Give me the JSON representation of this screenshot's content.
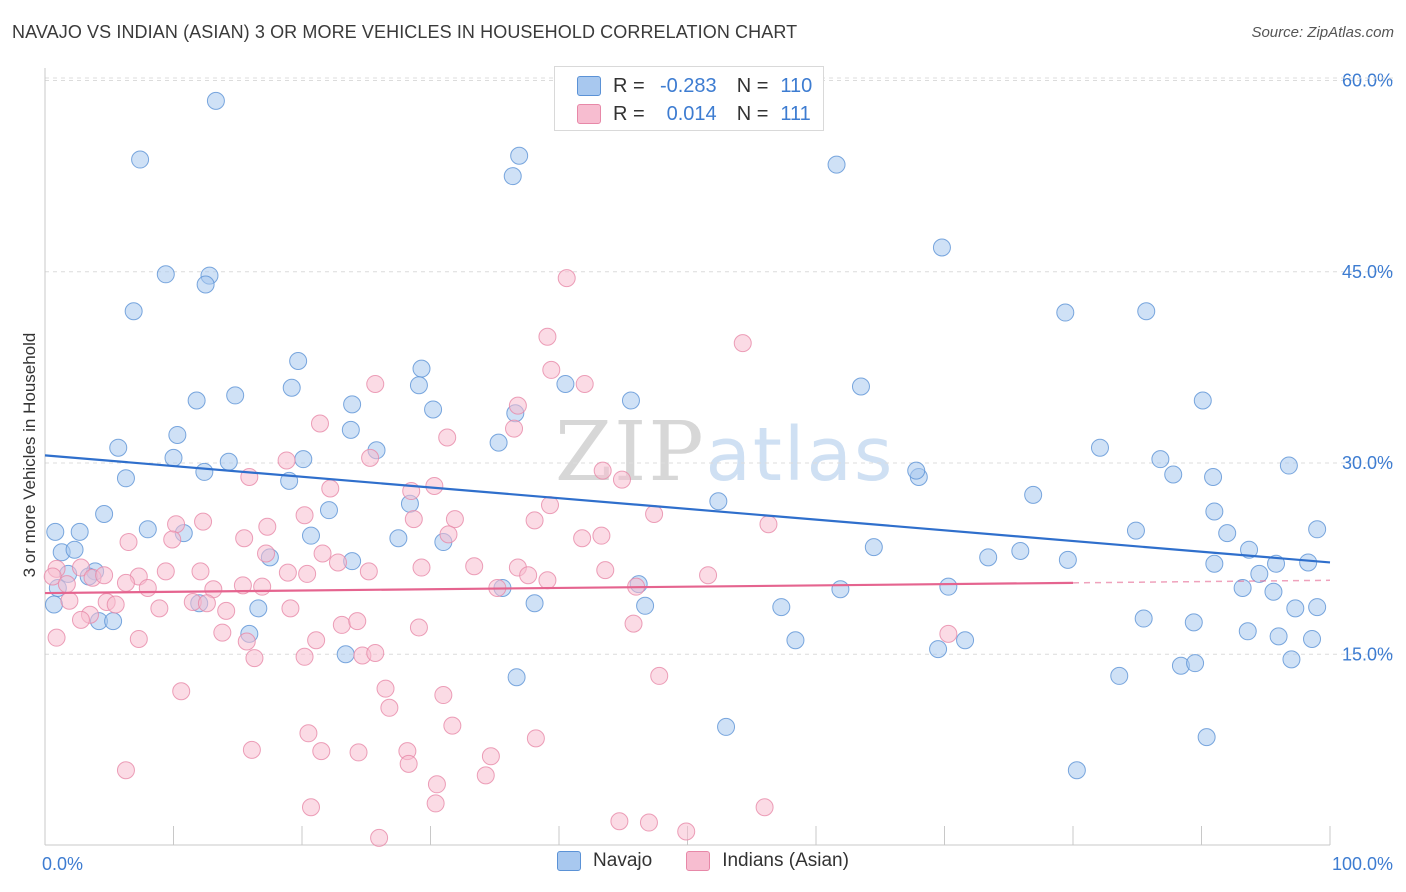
{
  "title": "NAVAJO VS INDIAN (ASIAN) 3 OR MORE VEHICLES IN HOUSEHOLD CORRELATION CHART",
  "source": "Source: ZipAtlas.com",
  "watermark": {
    "part1": "ZIP",
    "part2": "atlas"
  },
  "legend_stats": {
    "r_label": "R =",
    "n_label": "N =",
    "navajo": {
      "r": "-0.283",
      "n": "110"
    },
    "indian": {
      "r": "0.014",
      "n": "111"
    }
  },
  "colors": {
    "navajo_fill": "#a8c8ef",
    "navajo_stroke": "#5b92d6",
    "navajo_line": "#2f6fcc",
    "indian_fill": "#f7bdd0",
    "indian_stroke": "#e788a8",
    "indian_line": "#e5648f",
    "grid": "#dcdcdc",
    "tick_text": "#3d7cd1"
  },
  "chart_data": {
    "type": "scatter",
    "title": "NAVAJO VS INDIAN (ASIAN) 3 OR MORE VEHICLES IN HOUSEHOLD CORRELATION CHART",
    "xlabel": "",
    "ylabel": "3 or more Vehicles in Household",
    "xlim": [
      0,
      100
    ],
    "ylim": [
      0,
      63
    ],
    "x_tick_labels": [
      "0.0%",
      "100.0%"
    ],
    "y_ticks": [
      15,
      30,
      45,
      60
    ],
    "y_tick_labels": [
      "15.0%",
      "30.0%",
      "45.0%",
      "60.0%"
    ],
    "grid": true,
    "legend_position": "bottom-center",
    "series": [
      {
        "name": "Navajo",
        "trend": {
          "x": [
            0,
            100
          ],
          "y": [
            30.6,
            22.2
          ],
          "dashed_from": 100
        },
        "points": [
          [
            13.3,
            58.4
          ],
          [
            7.4,
            53.8
          ],
          [
            36.4,
            52.5
          ],
          [
            36.9,
            54.1
          ],
          [
            61.6,
            53.4
          ],
          [
            69.8,
            46.9
          ],
          [
            9.4,
            44.8
          ],
          [
            12.8,
            44.7
          ],
          [
            12.5,
            44.0
          ],
          [
            6.9,
            41.9
          ],
          [
            79.4,
            41.8
          ],
          [
            85.7,
            41.9
          ],
          [
            19.7,
            38.0
          ],
          [
            29.3,
            37.4
          ],
          [
            19.2,
            35.9
          ],
          [
            29.1,
            36.1
          ],
          [
            40.5,
            36.2
          ],
          [
            63.5,
            36.0
          ],
          [
            11.8,
            34.9
          ],
          [
            14.8,
            35.3
          ],
          [
            23.9,
            34.6
          ],
          [
            30.2,
            34.2
          ],
          [
            36.6,
            33.9
          ],
          [
            45.6,
            34.9
          ],
          [
            90.1,
            34.9
          ],
          [
            10.3,
            32.2
          ],
          [
            23.8,
            32.6
          ],
          [
            5.7,
            31.2
          ],
          [
            10.0,
            30.4
          ],
          [
            25.8,
            31.0
          ],
          [
            35.3,
            31.6
          ],
          [
            14.3,
            30.1
          ],
          [
            20.1,
            30.3
          ],
          [
            82.1,
            31.2
          ],
          [
            86.8,
            30.3
          ],
          [
            96.8,
            29.8
          ],
          [
            6.3,
            28.8
          ],
          [
            12.4,
            29.3
          ],
          [
            19.0,
            28.6
          ],
          [
            68.0,
            28.9
          ],
          [
            67.8,
            29.4
          ],
          [
            87.8,
            29.1
          ],
          [
            90.9,
            28.9
          ],
          [
            4.6,
            26.0
          ],
          [
            22.1,
            26.3
          ],
          [
            28.4,
            26.8
          ],
          [
            52.4,
            27.0
          ],
          [
            76.9,
            27.5
          ],
          [
            91.0,
            26.2
          ],
          [
            0.8,
            24.6
          ],
          [
            2.7,
            24.6
          ],
          [
            8.0,
            24.8
          ],
          [
            10.8,
            24.5
          ],
          [
            20.7,
            24.3
          ],
          [
            27.5,
            24.1
          ],
          [
            31.0,
            23.8
          ],
          [
            1.3,
            23.0
          ],
          [
            2.3,
            23.2
          ],
          [
            64.5,
            23.4
          ],
          [
            73.4,
            22.6
          ],
          [
            75.9,
            23.1
          ],
          [
            84.9,
            24.7
          ],
          [
            92.0,
            24.5
          ],
          [
            93.7,
            23.2
          ],
          [
            17.5,
            22.6
          ],
          [
            23.9,
            22.3
          ],
          [
            79.6,
            22.4
          ],
          [
            91.0,
            22.1
          ],
          [
            95.8,
            22.1
          ],
          [
            99.0,
            24.8
          ],
          [
            98.3,
            22.2
          ],
          [
            1.8,
            21.3
          ],
          [
            3.9,
            21.5
          ],
          [
            3.4,
            21.1
          ],
          [
            1.0,
            20.2
          ],
          [
            12.0,
            19.0
          ],
          [
            35.6,
            20.2
          ],
          [
            46.2,
            20.5
          ],
          [
            61.9,
            20.1
          ],
          [
            70.3,
            20.3
          ],
          [
            93.2,
            20.2
          ],
          [
            94.5,
            21.3
          ],
          [
            95.6,
            19.9
          ],
          [
            0.7,
            18.9
          ],
          [
            4.2,
            17.6
          ],
          [
            5.3,
            17.6
          ],
          [
            16.6,
            18.6
          ],
          [
            38.1,
            19.0
          ],
          [
            46.7,
            18.8
          ],
          [
            57.3,
            18.7
          ],
          [
            85.5,
            17.8
          ],
          [
            89.4,
            17.5
          ],
          [
            97.3,
            18.6
          ],
          [
            99.0,
            18.7
          ],
          [
            15.9,
            16.6
          ],
          [
            58.4,
            16.1
          ],
          [
            69.5,
            15.4
          ],
          [
            71.6,
            16.1
          ],
          [
            93.6,
            16.8
          ],
          [
            96.0,
            16.4
          ],
          [
            98.6,
            16.2
          ],
          [
            23.4,
            15.0
          ],
          [
            36.7,
            13.2
          ],
          [
            83.6,
            13.3
          ],
          [
            88.4,
            14.1
          ],
          [
            89.5,
            14.3
          ],
          [
            97.0,
            14.6
          ],
          [
            53.0,
            9.3
          ],
          [
            90.4,
            8.5
          ],
          [
            80.3,
            5.9
          ]
        ]
      },
      {
        "name": "Indians (Asian)",
        "trend": {
          "x": [
            0,
            80
          ],
          "y": [
            19.8,
            20.6
          ],
          "dashed_to": 100
        },
        "points": [
          [
            40.6,
            44.5
          ],
          [
            39.1,
            39.9
          ],
          [
            54.3,
            39.4
          ],
          [
            39.4,
            37.3
          ],
          [
            25.7,
            36.2
          ],
          [
            42.0,
            36.2
          ],
          [
            36.8,
            34.5
          ],
          [
            21.4,
            33.1
          ],
          [
            36.5,
            32.7
          ],
          [
            31.3,
            32.0
          ],
          [
            15.9,
            28.9
          ],
          [
            25.3,
            30.4
          ],
          [
            18.8,
            30.2
          ],
          [
            43.4,
            29.4
          ],
          [
            30.3,
            28.2
          ],
          [
            22.2,
            28.0
          ],
          [
            28.5,
            27.8
          ],
          [
            47.4,
            26.0
          ],
          [
            44.9,
            28.7
          ],
          [
            10.2,
            25.2
          ],
          [
            12.3,
            25.4
          ],
          [
            20.2,
            25.9
          ],
          [
            28.7,
            25.6
          ],
          [
            31.9,
            25.6
          ],
          [
            38.1,
            25.5
          ],
          [
            39.3,
            26.7
          ],
          [
            56.3,
            25.2
          ],
          [
            17.3,
            25.0
          ],
          [
            15.5,
            24.1
          ],
          [
            9.9,
            24.0
          ],
          [
            6.5,
            23.8
          ],
          [
            31.4,
            24.4
          ],
          [
            41.8,
            24.1
          ],
          [
            43.3,
            24.3
          ],
          [
            17.2,
            22.9
          ],
          [
            21.6,
            22.9
          ],
          [
            22.8,
            22.2
          ],
          [
            25.2,
            21.5
          ],
          [
            29.3,
            21.8
          ],
          [
            33.4,
            21.9
          ],
          [
            36.8,
            21.8
          ],
          [
            0.9,
            21.7
          ],
          [
            2.8,
            21.8
          ],
          [
            3.7,
            21.0
          ],
          [
            0.6,
            21.1
          ],
          [
            1.7,
            20.5
          ],
          [
            4.6,
            21.2
          ],
          [
            7.3,
            21.1
          ],
          [
            9.4,
            21.5
          ],
          [
            12.1,
            21.5
          ],
          [
            18.9,
            21.4
          ],
          [
            20.4,
            21.3
          ],
          [
            37.6,
            21.2
          ],
          [
            39.1,
            20.8
          ],
          [
            43.6,
            21.6
          ],
          [
            51.6,
            21.2
          ],
          [
            6.3,
            20.6
          ],
          [
            8.0,
            20.2
          ],
          [
            13.1,
            20.1
          ],
          [
            15.4,
            20.4
          ],
          [
            16.9,
            20.3
          ],
          [
            35.2,
            20.2
          ],
          [
            46.0,
            20.3
          ],
          [
            1.9,
            19.2
          ],
          [
            4.8,
            19.1
          ],
          [
            5.5,
            18.9
          ],
          [
            8.9,
            18.6
          ],
          [
            11.5,
            19.1
          ],
          [
            12.6,
            19.0
          ],
          [
            14.1,
            18.4
          ],
          [
            19.1,
            18.6
          ],
          [
            3.5,
            18.1
          ],
          [
            2.8,
            17.7
          ],
          [
            23.1,
            17.3
          ],
          [
            24.3,
            17.6
          ],
          [
            29.1,
            17.1
          ],
          [
            45.8,
            17.4
          ],
          [
            0.9,
            16.3
          ],
          [
            7.3,
            16.2
          ],
          [
            13.8,
            16.7
          ],
          [
            15.7,
            16.0
          ],
          [
            21.1,
            16.1
          ],
          [
            20.2,
            14.8
          ],
          [
            24.7,
            14.9
          ],
          [
            25.7,
            15.1
          ],
          [
            70.3,
            16.6
          ],
          [
            16.3,
            14.7
          ],
          [
            10.6,
            12.1
          ],
          [
            26.5,
            12.3
          ],
          [
            31.0,
            11.8
          ],
          [
            47.8,
            13.3
          ],
          [
            26.8,
            10.8
          ],
          [
            31.7,
            9.4
          ],
          [
            20.5,
            8.8
          ],
          [
            28.2,
            7.4
          ],
          [
            34.7,
            7.0
          ],
          [
            38.2,
            8.4
          ],
          [
            16.1,
            7.5
          ],
          [
            21.5,
            7.4
          ],
          [
            24.4,
            7.3
          ],
          [
            6.3,
            5.9
          ],
          [
            28.3,
            6.4
          ],
          [
            30.5,
            4.8
          ],
          [
            34.3,
            5.5
          ],
          [
            30.4,
            3.3
          ],
          [
            20.7,
            3.0
          ],
          [
            56.0,
            3.0
          ],
          [
            44.7,
            1.9
          ],
          [
            47.0,
            1.8
          ],
          [
            49.9,
            1.1
          ],
          [
            26.0,
            0.6
          ]
        ]
      }
    ]
  }
}
